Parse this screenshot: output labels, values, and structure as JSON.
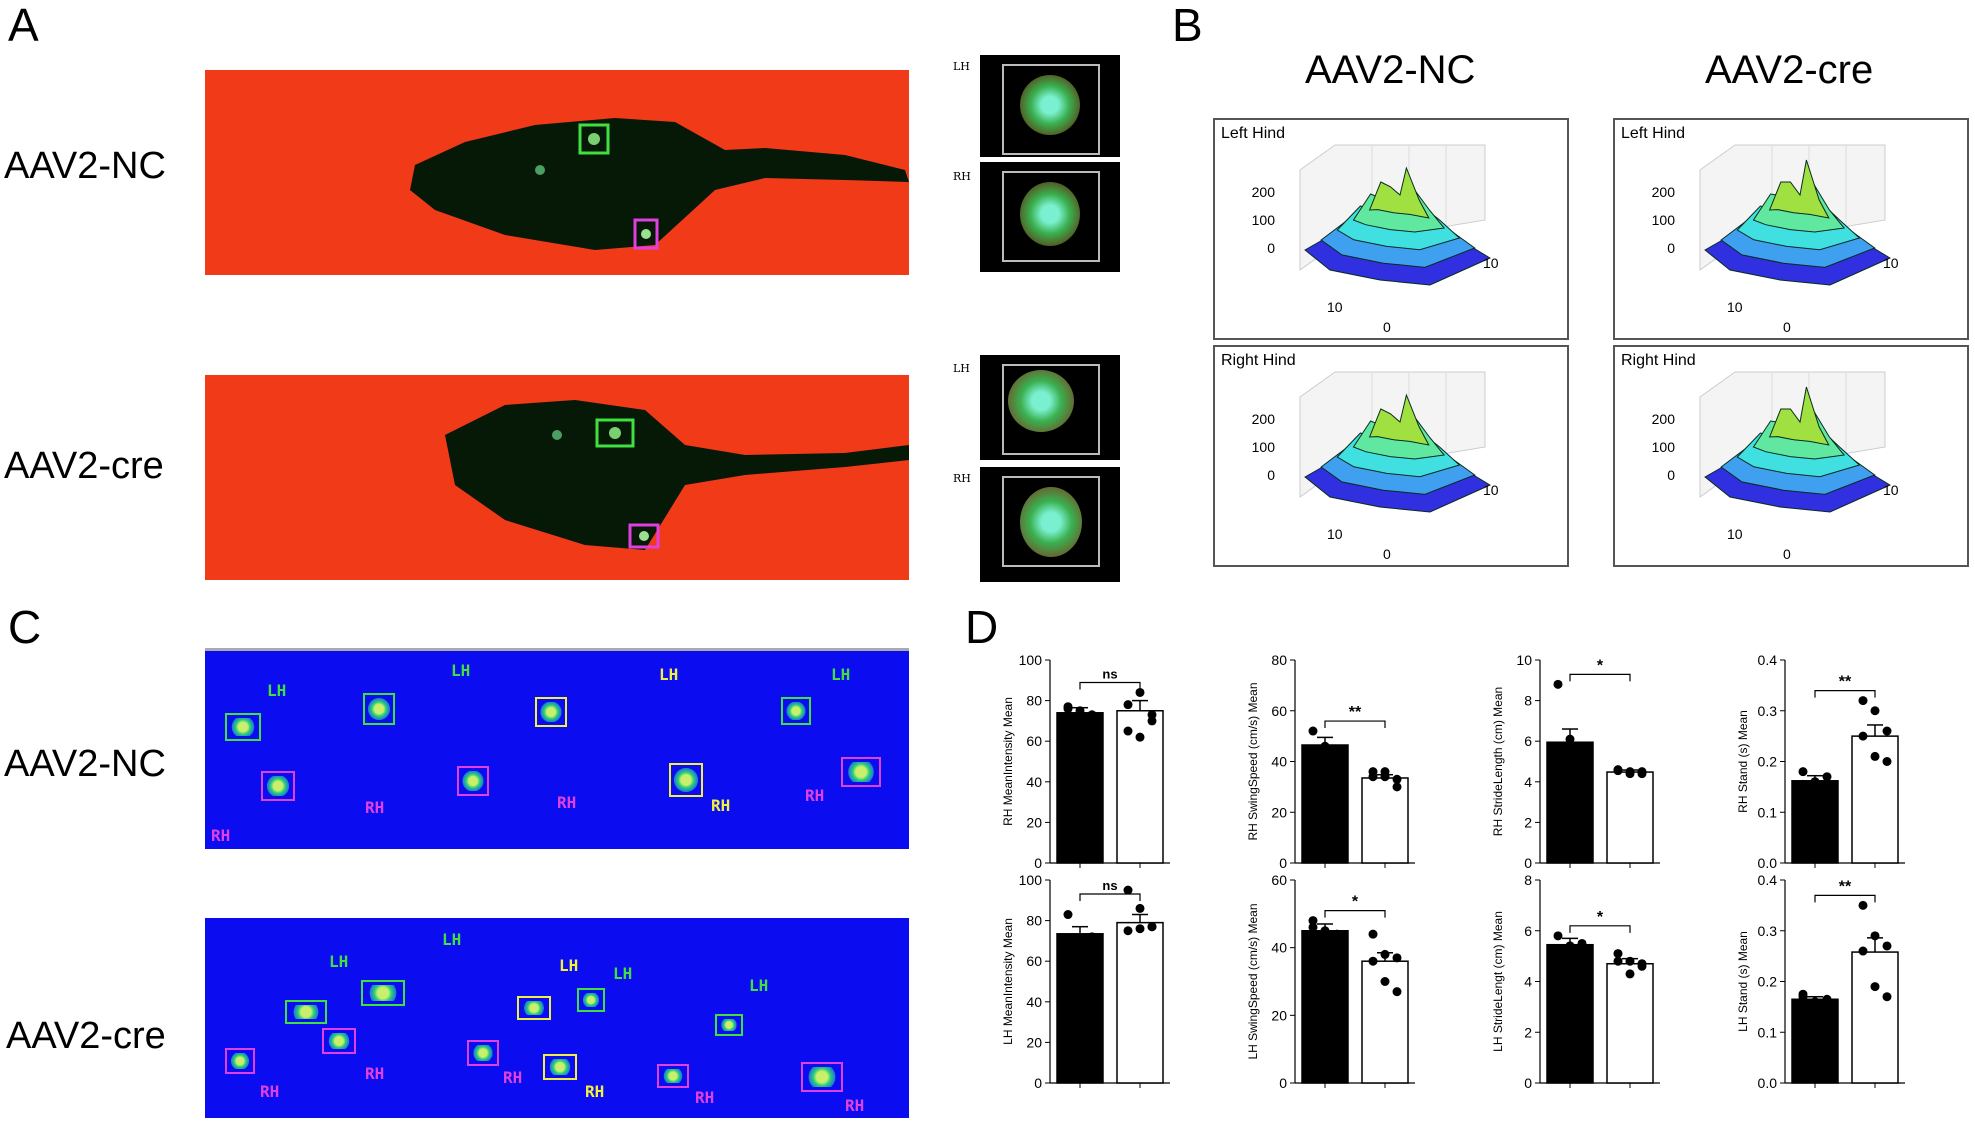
{
  "figure": {
    "panel_a": {
      "letter": "A",
      "rows": [
        "AAV2-NC",
        "AAV2-cre"
      ],
      "paw_tags": [
        "LH",
        "RH"
      ]
    },
    "panel_b": {
      "letter": "B",
      "groups": [
        "AAV2-NC",
        "AAV2-cre"
      ],
      "plot_titles": [
        "Left Hind",
        "Right Hind"
      ],
      "z_ticks": [
        "200",
        "100",
        "0"
      ],
      "axis_ticks": [
        "10",
        "10",
        "0"
      ]
    },
    "panel_c": {
      "letter": "C",
      "rows": [
        "AAV2-NC",
        "AAV2-cre"
      ],
      "lh": "LH",
      "rh": "RH"
    },
    "panel_d": {
      "letter": "D"
    },
    "colors": {
      "strip_red": "#f03a18",
      "strip_blue": "#0c0cf0",
      "lh_box": "#40e040",
      "rh_box": "#e040e0",
      "highlight_box": "#f0f040"
    }
  },
  "chart_data": [
    {
      "type": "bar",
      "categories": [
        "AAV2-NC",
        "AAV2-cre"
      ],
      "ylabel": "RH MeanIntensity Mean",
      "ylim": [
        0,
        100
      ],
      "yticks": [
        "0",
        "20",
        "40",
        "60",
        "80",
        "100"
      ],
      "values": [
        74,
        75
      ],
      "errors": [
        2.5,
        5
      ],
      "points": [
        [
          76,
          72,
          73,
          77,
          75,
          70
        ],
        [
          78,
          84,
          73,
          65,
          62,
          70
        ]
      ],
      "significance": "ns"
    },
    {
      "type": "bar",
      "categories": [
        "AAV2-NC",
        "AAV2-cre"
      ],
      "ylabel": "RH SwingSpeed (cm/s) Mean",
      "ylim": [
        0,
        80
      ],
      "yticks": [
        "0",
        "20",
        "40",
        "60",
        "80"
      ],
      "values": [
        46.5,
        33.5
      ],
      "errors": [
        3,
        1.3
      ],
      "points": [
        [
          52,
          46,
          44,
          44
        ],
        [
          36,
          34,
          33,
          34,
          36,
          30
        ]
      ],
      "significance": "**"
    },
    {
      "type": "bar",
      "categories": [
        "AAV2-NC",
        "AAV2-cre"
      ],
      "ylabel": "RH StrideLength (cm) Mean",
      "ylim": [
        0,
        10
      ],
      "yticks": [
        "0",
        "2",
        "4",
        "6",
        "8",
        "10"
      ],
      "values": [
        5.95,
        4.48
      ],
      "errors": [
        0.65,
        0.1
      ],
      "points": [
        [
          8.8,
          6.1,
          5.5,
          5.4
        ],
        [
          4.6,
          4.5,
          4.4,
          4.55,
          4.4,
          4.5
        ]
      ],
      "significance": "*"
    },
    {
      "type": "bar",
      "categories": [
        "AAV2-NC",
        "AAV2-cre"
      ],
      "ylabel": "RH Stand (s) Mean",
      "ylim": [
        0,
        0.4
      ],
      "yticks": [
        "0.0",
        "0.1",
        "0.2",
        "0.3",
        "0.4"
      ],
      "values": [
        0.162,
        0.25
      ],
      "errors": [
        0.01,
        0.022
      ],
      "points": [
        [
          0.18,
          0.16,
          0.17,
          0.155,
          0.16
        ],
        [
          0.32,
          0.3,
          0.26,
          0.25,
          0.21,
          0.2
        ]
      ],
      "significance": "**"
    },
    {
      "type": "bar",
      "categories": [
        "AAV2-NC",
        "AAV2-cre"
      ],
      "ylabel": "LH MeanIntensity Mean",
      "ylim": [
        0,
        100
      ],
      "yticks": [
        "0",
        "20",
        "40",
        "60",
        "80",
        "100"
      ],
      "values": [
        73.5,
        79
      ],
      "errors": [
        3.5,
        4
      ],
      "points": [
        [
          83,
          68,
          72,
          70
        ],
        [
          95,
          86,
          77,
          75,
          76,
          77
        ]
      ],
      "significance": "ns"
    },
    {
      "type": "bar",
      "categories": [
        "AAV2-NC",
        "AAV2-cre"
      ],
      "ylabel": "LH SwingSpeed (cm/s) Mean",
      "ylim": [
        0,
        60
      ],
      "yticks": [
        "0",
        "20",
        "40",
        "60"
      ],
      "values": [
        45,
        36
      ],
      "errors": [
        2,
        2.5
      ],
      "points": [
        [
          48,
          44,
          44,
          46,
          45
        ],
        [
          44,
          38,
          37,
          36,
          30,
          27
        ]
      ],
      "significance": "*"
    },
    {
      "type": "bar",
      "categories": [
        "AAV2-NC",
        "AAV2-cre"
      ],
      "ylabel": "LH StrideLengt (cm) Mean",
      "ylim": [
        0,
        8
      ],
      "yticks": [
        "0",
        "2",
        "4",
        "6",
        "8"
      ],
      "values": [
        5.45,
        4.7
      ],
      "errors": [
        0.25,
        0.2
      ],
      "points": [
        [
          5.8,
          5.4,
          5.5,
          5.3,
          5.4
        ],
        [
          5.1,
          4.8,
          4.6,
          4.8,
          4.3,
          4.7
        ]
      ],
      "significance": "*"
    },
    {
      "type": "bar",
      "categories": [
        "AAV2-NC",
        "AAV2-cre"
      ],
      "ylabel": "LH Stand (s) Mean",
      "ylim": [
        0,
        0.4
      ],
      "yticks": [
        "0.0",
        "0.1",
        "0.2",
        "0.3",
        "0.4"
      ],
      "values": [
        0.165,
        0.258
      ],
      "errors": [
        0.005,
        0.028
      ],
      "points": [
        [
          0.175,
          0.16,
          0.165,
          0.17
        ],
        [
          0.35,
          0.29,
          0.27,
          0.26,
          0.19,
          0.17
        ]
      ],
      "significance": "**"
    }
  ]
}
